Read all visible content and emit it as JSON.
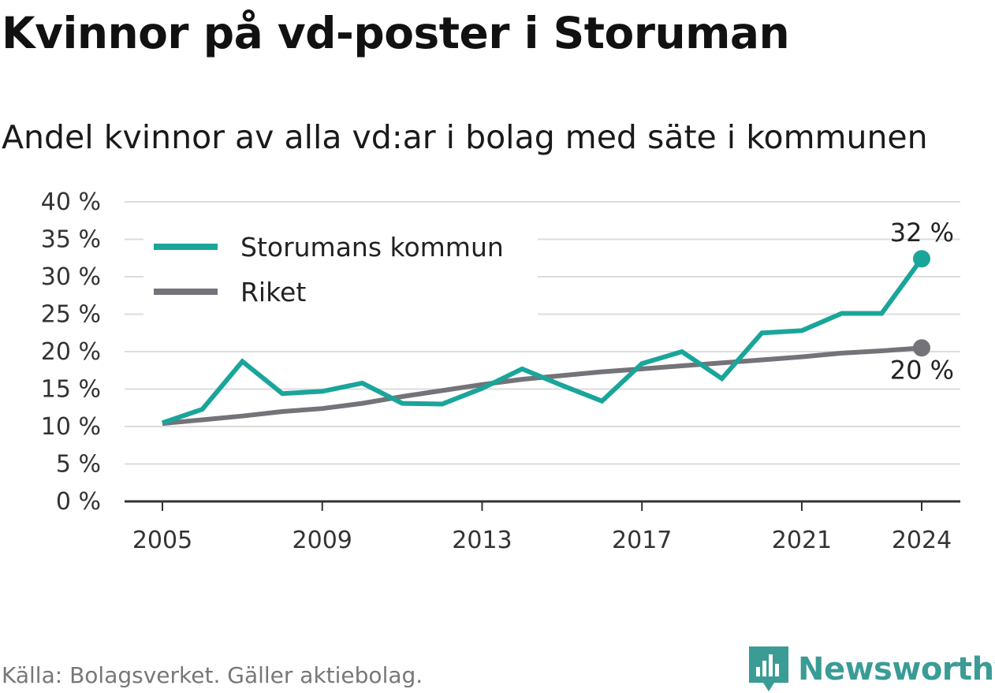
{
  "header": {
    "title": "Kvinnor på vd-poster i Storuman",
    "subtitle": "Andel kvinnor av alla vd:ar i bolag med säte i kommunen"
  },
  "footer": {
    "source": "Källa: Bolagsverket. Gäller aktiebolag.",
    "brand": "Newsworthy",
    "brand_icon": "newsworthy-logo-icon"
  },
  "colors": {
    "series_local": "#1aa59a",
    "series_national": "#747379",
    "grid": "#dcdcdc",
    "axis": "#333333",
    "brand": "#3b9c96"
  },
  "chart_data": {
    "type": "line",
    "title": "Kvinnor på vd-poster i Storuman",
    "subtitle": "Andel kvinnor av alla vd:ar i bolag med säte i kommunen",
    "xlabel": "",
    "ylabel": "",
    "x": [
      2005,
      2006,
      2007,
      2008,
      2009,
      2010,
      2011,
      2012,
      2013,
      2014,
      2015,
      2016,
      2017,
      2018,
      2019,
      2020,
      2021,
      2022,
      2023,
      2024
    ],
    "x_ticks": [
      "2005",
      "2009",
      "2013",
      "2017",
      "2021",
      "2024"
    ],
    "y_ticks": [
      "0 %",
      "5 %",
      "10 %",
      "15 %",
      "20 %",
      "25 %",
      "30 %",
      "35 %",
      "40 %"
    ],
    "ylim": [
      0,
      40
    ],
    "xlim": [
      2004,
      2025
    ],
    "grid": true,
    "legend_position": "top-left",
    "series": [
      {
        "name": "Storumans kommun",
        "color": "#1aa59a",
        "values": [
          10.5,
          12.3,
          18.7,
          14.4,
          14.7,
          15.8,
          13.1,
          13.0,
          15.1,
          17.7,
          15.5,
          13.4,
          18.4,
          20.0,
          16.4,
          22.5,
          22.8,
          25.1,
          25.1,
          32.4
        ],
        "end_label": "32 %"
      },
      {
        "name": "Riket",
        "color": "#747379",
        "values": [
          10.4,
          10.9,
          11.4,
          12.0,
          12.4,
          13.1,
          14.0,
          14.8,
          15.6,
          16.3,
          16.8,
          17.3,
          17.7,
          18.1,
          18.5,
          18.9,
          19.3,
          19.8,
          20.1,
          20.5
        ],
        "end_label": "20 %"
      }
    ]
  }
}
